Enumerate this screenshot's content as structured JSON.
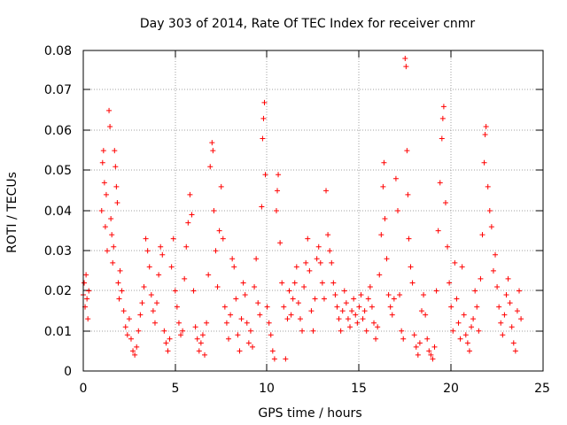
{
  "chart_data": {
    "type": "scatter",
    "title": "Day 303 of 2014, Rate Of TEC Index for receiver cnmr",
    "xlabel": "GPS time / hours",
    "ylabel": "ROTI / TECUs",
    "xlim": [
      0,
      25
    ],
    "ylim": [
      0,
      0.08
    ],
    "xticks": [
      0,
      5,
      10,
      15,
      20,
      25
    ],
    "yticks": [
      0,
      0.01,
      0.02,
      0.03,
      0.04,
      0.05,
      0.06,
      0.07,
      0.08
    ],
    "xtick_labels": [
      "0",
      "5",
      "10",
      "15",
      "20",
      "25"
    ],
    "ytick_labels": [
      "0",
      "0.01",
      "0.02",
      "0.03",
      "0.04",
      "0.05",
      "0.06",
      "0.07",
      "0.08"
    ],
    "grid": true,
    "marker": "+",
    "color": "#ff0000",
    "series": [
      {
        "name": "ROTI",
        "points": [
          [
            0.0,
            0.019
          ],
          [
            0.05,
            0.022
          ],
          [
            0.1,
            0.016
          ],
          [
            0.15,
            0.024
          ],
          [
            0.2,
            0.018
          ],
          [
            0.25,
            0.013
          ],
          [
            0.3,
            0.02
          ],
          [
            1.0,
            0.04
          ],
          [
            1.05,
            0.052
          ],
          [
            1.1,
            0.055
          ],
          [
            1.15,
            0.047
          ],
          [
            1.2,
            0.036
          ],
          [
            1.25,
            0.044
          ],
          [
            1.3,
            0.03
          ],
          [
            1.4,
            0.065
          ],
          [
            1.45,
            0.061
          ],
          [
            1.5,
            0.038
          ],
          [
            1.55,
            0.034
          ],
          [
            1.6,
            0.027
          ],
          [
            1.65,
            0.031
          ],
          [
            1.7,
            0.055
          ],
          [
            1.75,
            0.051
          ],
          [
            1.8,
            0.046
          ],
          [
            1.85,
            0.042
          ],
          [
            1.9,
            0.022
          ],
          [
            1.95,
            0.018
          ],
          [
            2.0,
            0.025
          ],
          [
            2.1,
            0.02
          ],
          [
            2.2,
            0.015
          ],
          [
            2.3,
            0.011
          ],
          [
            2.4,
            0.009
          ],
          [
            2.5,
            0.013
          ],
          [
            2.6,
            0.008
          ],
          [
            2.7,
            0.005
          ],
          [
            2.8,
            0.004
          ],
          [
            2.9,
            0.006
          ],
          [
            3.0,
            0.01
          ],
          [
            3.1,
            0.014
          ],
          [
            3.2,
            0.017
          ],
          [
            3.3,
            0.021
          ],
          [
            3.4,
            0.033
          ],
          [
            3.5,
            0.03
          ],
          [
            3.6,
            0.026
          ],
          [
            3.7,
            0.019
          ],
          [
            3.8,
            0.015
          ],
          [
            3.9,
            0.012
          ],
          [
            4.0,
            0.017
          ],
          [
            4.1,
            0.024
          ],
          [
            4.2,
            0.031
          ],
          [
            4.3,
            0.029
          ],
          [
            4.4,
            0.01
          ],
          [
            4.5,
            0.007
          ],
          [
            4.6,
            0.005
          ],
          [
            4.7,
            0.008
          ],
          [
            4.8,
            0.026
          ],
          [
            4.9,
            0.033
          ],
          [
            5.0,
            0.02
          ],
          [
            5.1,
            0.016
          ],
          [
            5.2,
            0.012
          ],
          [
            5.3,
            0.009
          ],
          [
            5.4,
            0.01
          ],
          [
            5.5,
            0.023
          ],
          [
            5.6,
            0.031
          ],
          [
            5.7,
            0.037
          ],
          [
            5.8,
            0.044
          ],
          [
            5.9,
            0.039
          ],
          [
            6.0,
            0.02
          ],
          [
            6.1,
            0.011
          ],
          [
            6.2,
            0.008
          ],
          [
            6.3,
            0.005
          ],
          [
            6.4,
            0.007
          ],
          [
            6.5,
            0.009
          ],
          [
            6.6,
            0.004
          ],
          [
            6.7,
            0.012
          ],
          [
            6.8,
            0.024
          ],
          [
            6.9,
            0.051
          ],
          [
            7.0,
            0.057
          ],
          [
            7.05,
            0.055
          ],
          [
            7.1,
            0.04
          ],
          [
            7.2,
            0.03
          ],
          [
            7.3,
            0.021
          ],
          [
            7.4,
            0.035
          ],
          [
            7.5,
            0.046
          ],
          [
            7.6,
            0.033
          ],
          [
            7.7,
            0.016
          ],
          [
            7.8,
            0.012
          ],
          [
            7.9,
            0.008
          ],
          [
            8.0,
            0.014
          ],
          [
            8.1,
            0.028
          ],
          [
            8.2,
            0.026
          ],
          [
            8.3,
            0.018
          ],
          [
            8.4,
            0.009
          ],
          [
            8.5,
            0.005
          ],
          [
            8.6,
            0.013
          ],
          [
            8.7,
            0.022
          ],
          [
            8.8,
            0.019
          ],
          [
            8.9,
            0.012
          ],
          [
            9.0,
            0.007
          ],
          [
            9.1,
            0.01
          ],
          [
            9.2,
            0.006
          ],
          [
            9.3,
            0.021
          ],
          [
            9.4,
            0.028
          ],
          [
            9.5,
            0.017
          ],
          [
            9.6,
            0.014
          ],
          [
            9.7,
            0.041
          ],
          [
            9.75,
            0.058
          ],
          [
            9.8,
            0.063
          ],
          [
            9.85,
            0.067
          ],
          [
            9.9,
            0.049
          ],
          [
            10.0,
            0.016
          ],
          [
            10.1,
            0.012
          ],
          [
            10.2,
            0.009
          ],
          [
            10.3,
            0.005
          ],
          [
            10.4,
            0.003
          ],
          [
            10.5,
            0.04
          ],
          [
            10.55,
            0.045
          ],
          [
            10.6,
            0.049
          ],
          [
            10.7,
            0.032
          ],
          [
            10.8,
            0.022
          ],
          [
            10.9,
            0.016
          ],
          [
            11.0,
            0.003
          ],
          [
            11.1,
            0.013
          ],
          [
            11.2,
            0.02
          ],
          [
            11.3,
            0.014
          ],
          [
            11.4,
            0.018
          ],
          [
            11.5,
            0.022
          ],
          [
            11.6,
            0.026
          ],
          [
            11.7,
            0.017
          ],
          [
            11.8,
            0.013
          ],
          [
            11.9,
            0.01
          ],
          [
            12.0,
            0.021
          ],
          [
            12.1,
            0.027
          ],
          [
            12.2,
            0.033
          ],
          [
            12.3,
            0.025
          ],
          [
            12.4,
            0.015
          ],
          [
            12.5,
            0.01
          ],
          [
            12.6,
            0.018
          ],
          [
            12.7,
            0.028
          ],
          [
            12.8,
            0.031
          ],
          [
            12.9,
            0.027
          ],
          [
            13.0,
            0.022
          ],
          [
            13.1,
            0.018
          ],
          [
            13.2,
            0.045
          ],
          [
            13.3,
            0.034
          ],
          [
            13.4,
            0.03
          ],
          [
            13.5,
            0.027
          ],
          [
            13.6,
            0.022
          ],
          [
            13.7,
            0.019
          ],
          [
            13.8,
            0.016
          ],
          [
            13.9,
            0.013
          ],
          [
            14.0,
            0.01
          ],
          [
            14.1,
            0.015
          ],
          [
            14.2,
            0.02
          ],
          [
            14.3,
            0.017
          ],
          [
            14.4,
            0.013
          ],
          [
            14.5,
            0.011
          ],
          [
            14.6,
            0.015
          ],
          [
            14.7,
            0.018
          ],
          [
            14.8,
            0.014
          ],
          [
            14.9,
            0.012
          ],
          [
            15.0,
            0.016
          ],
          [
            15.1,
            0.019
          ],
          [
            15.2,
            0.013
          ],
          [
            15.3,
            0.015
          ],
          [
            15.4,
            0.01
          ],
          [
            15.5,
            0.018
          ],
          [
            15.6,
            0.021
          ],
          [
            15.7,
            0.016
          ],
          [
            15.8,
            0.012
          ],
          [
            15.9,
            0.008
          ],
          [
            16.0,
            0.011
          ],
          [
            16.1,
            0.024
          ],
          [
            16.2,
            0.034
          ],
          [
            16.3,
            0.046
          ],
          [
            16.35,
            0.052
          ],
          [
            16.4,
            0.038
          ],
          [
            16.5,
            0.028
          ],
          [
            16.6,
            0.019
          ],
          [
            16.7,
            0.016
          ],
          [
            16.8,
            0.014
          ],
          [
            16.9,
            0.018
          ],
          [
            17.0,
            0.048
          ],
          [
            17.1,
            0.04
          ],
          [
            17.2,
            0.019
          ],
          [
            17.3,
            0.01
          ],
          [
            17.4,
            0.008
          ],
          [
            17.5,
            0.078
          ],
          [
            17.55,
            0.076
          ],
          [
            17.6,
            0.055
          ],
          [
            17.65,
            0.044
          ],
          [
            17.7,
            0.033
          ],
          [
            17.8,
            0.026
          ],
          [
            17.9,
            0.022
          ],
          [
            18.0,
            0.009
          ],
          [
            18.1,
            0.006
          ],
          [
            18.2,
            0.004
          ],
          [
            18.3,
            0.007
          ],
          [
            18.4,
            0.015
          ],
          [
            18.5,
            0.019
          ],
          [
            18.6,
            0.014
          ],
          [
            18.7,
            0.008
          ],
          [
            18.8,
            0.005
          ],
          [
            18.9,
            0.004
          ],
          [
            19.0,
            0.003
          ],
          [
            19.1,
            0.006
          ],
          [
            19.2,
            0.02
          ],
          [
            19.3,
            0.035
          ],
          [
            19.4,
            0.047
          ],
          [
            19.5,
            0.058
          ],
          [
            19.55,
            0.063
          ],
          [
            19.6,
            0.066
          ],
          [
            19.7,
            0.042
          ],
          [
            19.8,
            0.031
          ],
          [
            19.9,
            0.022
          ],
          [
            20.0,
            0.016
          ],
          [
            20.1,
            0.01
          ],
          [
            20.2,
            0.027
          ],
          [
            20.3,
            0.018
          ],
          [
            20.4,
            0.012
          ],
          [
            20.5,
            0.008
          ],
          [
            20.6,
            0.026
          ],
          [
            20.7,
            0.014
          ],
          [
            20.8,
            0.009
          ],
          [
            20.9,
            0.007
          ],
          [
            21.0,
            0.005
          ],
          [
            21.1,
            0.011
          ],
          [
            21.2,
            0.013
          ],
          [
            21.3,
            0.02
          ],
          [
            21.4,
            0.016
          ],
          [
            21.5,
            0.01
          ],
          [
            21.6,
            0.023
          ],
          [
            21.7,
            0.034
          ],
          [
            21.8,
            0.052
          ],
          [
            21.85,
            0.059
          ],
          [
            21.9,
            0.061
          ],
          [
            22.0,
            0.046
          ],
          [
            22.1,
            0.04
          ],
          [
            22.2,
            0.036
          ],
          [
            22.3,
            0.025
          ],
          [
            22.4,
            0.029
          ],
          [
            22.5,
            0.021
          ],
          [
            22.6,
            0.016
          ],
          [
            22.7,
            0.012
          ],
          [
            22.8,
            0.009
          ],
          [
            22.9,
            0.014
          ],
          [
            23.0,
            0.019
          ],
          [
            23.1,
            0.023
          ],
          [
            23.2,
            0.017
          ],
          [
            23.3,
            0.011
          ],
          [
            23.4,
            0.007
          ],
          [
            23.5,
            0.005
          ],
          [
            23.6,
            0.015
          ],
          [
            23.7,
            0.02
          ],
          [
            23.8,
            0.013
          ]
        ]
      }
    ]
  }
}
